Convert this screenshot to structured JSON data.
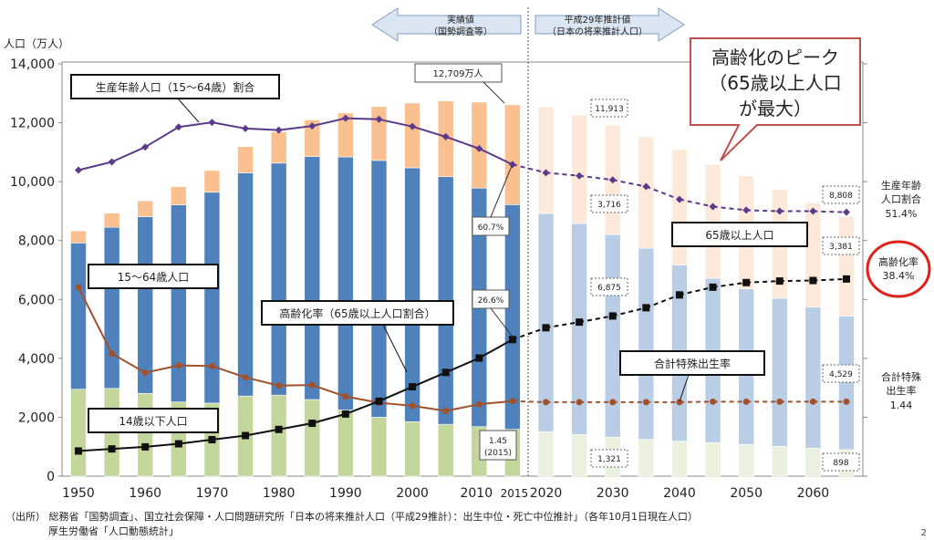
{
  "chart_data": {
    "type": "bar",
    "y_unit_label": "人口（万人）",
    "ylim": [
      0,
      14000
    ],
    "yticks": [
      "0",
      "2,000",
      "4,000",
      "6,000",
      "8,000",
      "10,000",
      "12,000",
      "14,000"
    ],
    "x_tick_labels": [
      "1950",
      "1960",
      "1970",
      "1980",
      "1990",
      "2000",
      "2010",
      "2015",
      "2020",
      "2030",
      "2040",
      "2050",
      "2060"
    ],
    "years": [
      1950,
      1955,
      1960,
      1965,
      1970,
      1975,
      1980,
      1985,
      1990,
      1995,
      2000,
      2005,
      2010,
      2015,
      2020,
      2025,
      2030,
      2035,
      2040,
      2045,
      2050,
      2055,
      2060,
      2065
    ],
    "projection_start_index": 14,
    "series": [
      {
        "name": "14歳以下人口",
        "color_actual": "#c3d69b",
        "color_projected": "#ebf1de",
        "values": [
          2950,
          2980,
          2810,
          2520,
          2480,
          2720,
          2750,
          2600,
          2250,
          2000,
          1850,
          1760,
          1680,
          1590,
          1510,
          1410,
          1320,
          1250,
          1190,
          1140,
          1080,
          1010,
          950,
          900
        ]
      },
      {
        "name": "15〜64歳人口",
        "color_actual": "#4f81bd",
        "color_projected": "#b9cde5",
        "values": [
          4970,
          5470,
          6000,
          6690,
          7160,
          7580,
          7880,
          8250,
          8590,
          8720,
          8620,
          8410,
          8100,
          7630,
          7410,
          7170,
          6880,
          6490,
          5980,
          5580,
          5280,
          5030,
          4790,
          4530
        ]
      },
      {
        "name": "65歳以上人口",
        "color_actual": "#fac090",
        "color_projected": "#fde9d9",
        "values": [
          410,
          480,
          540,
          620,
          740,
          890,
          1060,
          1250,
          1490,
          1830,
          2200,
          2570,
          2920,
          3390,
          3620,
          3680,
          3716,
          3780,
          3920,
          3860,
          3840,
          3700,
          3540,
          3381
        ]
      },
      {
        "name": "生産年齢人口（15〜64歳）割合",
        "color": "#5b3a8c",
        "unit": "%",
        "values": [
          59.6,
          61.2,
          64.1,
          68.0,
          68.9,
          67.7,
          67.4,
          68.2,
          69.7,
          69.5,
          68.1,
          66.1,
          63.8,
          60.7,
          59.1,
          58.5,
          57.7,
          56.4,
          53.9,
          52.5,
          51.8,
          51.6,
          51.6,
          51.4
        ]
      },
      {
        "name": "高齢化率（65歳以上人口割合）",
        "color": "#111111",
        "unit": "%",
        "values": [
          4.9,
          5.3,
          5.7,
          6.3,
          7.1,
          7.9,
          9.1,
          10.3,
          12.1,
          14.6,
          17.4,
          20.2,
          23.0,
          26.6,
          28.9,
          30.0,
          31.2,
          32.8,
          35.3,
          36.8,
          37.7,
          38.0,
          38.1,
          38.4
        ]
      },
      {
        "name": "合計特殊出生率",
        "color": "#a0522d",
        "unit": "",
        "values": [
          3.65,
          2.37,
          2.0,
          2.14,
          2.13,
          1.91,
          1.75,
          1.76,
          1.54,
          1.42,
          1.36,
          1.26,
          1.39,
          1.45,
          1.43,
          1.43,
          1.43,
          1.43,
          1.43,
          1.44,
          1.44,
          1.44,
          1.44,
          1.44
        ]
      }
    ],
    "annotations": {
      "actual_arrow": {
        "line1": "実績値",
        "line2": "（国勢調査等）"
      },
      "projection_arrow": {
        "line1": "平成29年推計値",
        "line2": "（日本の将来推計人口）"
      },
      "peak_total": "12,709万人",
      "ratio_2015": "60.7%",
      "aging_2015": "26.6%",
      "tfr_2015_line1": "1.45",
      "tfr_2015_line2": "(2015)",
      "total_2030": "11,913",
      "elderly_2030": "3,716",
      "working_2030": "6,875",
      "child_2030": "1,321",
      "total_2065": "8,808",
      "elderly_2065": "3,381",
      "working_2065": "4,529",
      "child_2065": "898",
      "callout_line1": "高齢化のピーク",
      "callout_line2": "（65歳以上人口",
      "callout_line3": "が最大）",
      "label_working_ratio": "生産年齢人口（15〜64歳）割合",
      "label_working_pop": "15〜64歳人口",
      "label_aging_rate": "高齢化率（65歳以上人口割合）",
      "label_elderly_pop": "65歳以上人口",
      "label_tfr": "合計特殊出生率",
      "label_child_pop": "14歳以下人口",
      "right_working_line1": "生産年齢",
      "right_working_line2": "人口割合",
      "right_working_line3": "51.4%",
      "right_aging_line1": "高齢化率",
      "right_aging_line2": "38.4%",
      "right_tfr_line1": "合計特殊",
      "right_tfr_line2": "出生率",
      "right_tfr_line3": "1.44"
    }
  },
  "footer": {
    "source_label": "（出所）",
    "source_line1": "総務省「国勢調査」、国立社会保障・人口問題研究所「日本の将来推計人口（平成29推計）：出生中位・死亡中位推計」（各年10月1日現在人口）",
    "source_line2": "厚生労働省「人口動態統計」",
    "page_number": "2"
  }
}
